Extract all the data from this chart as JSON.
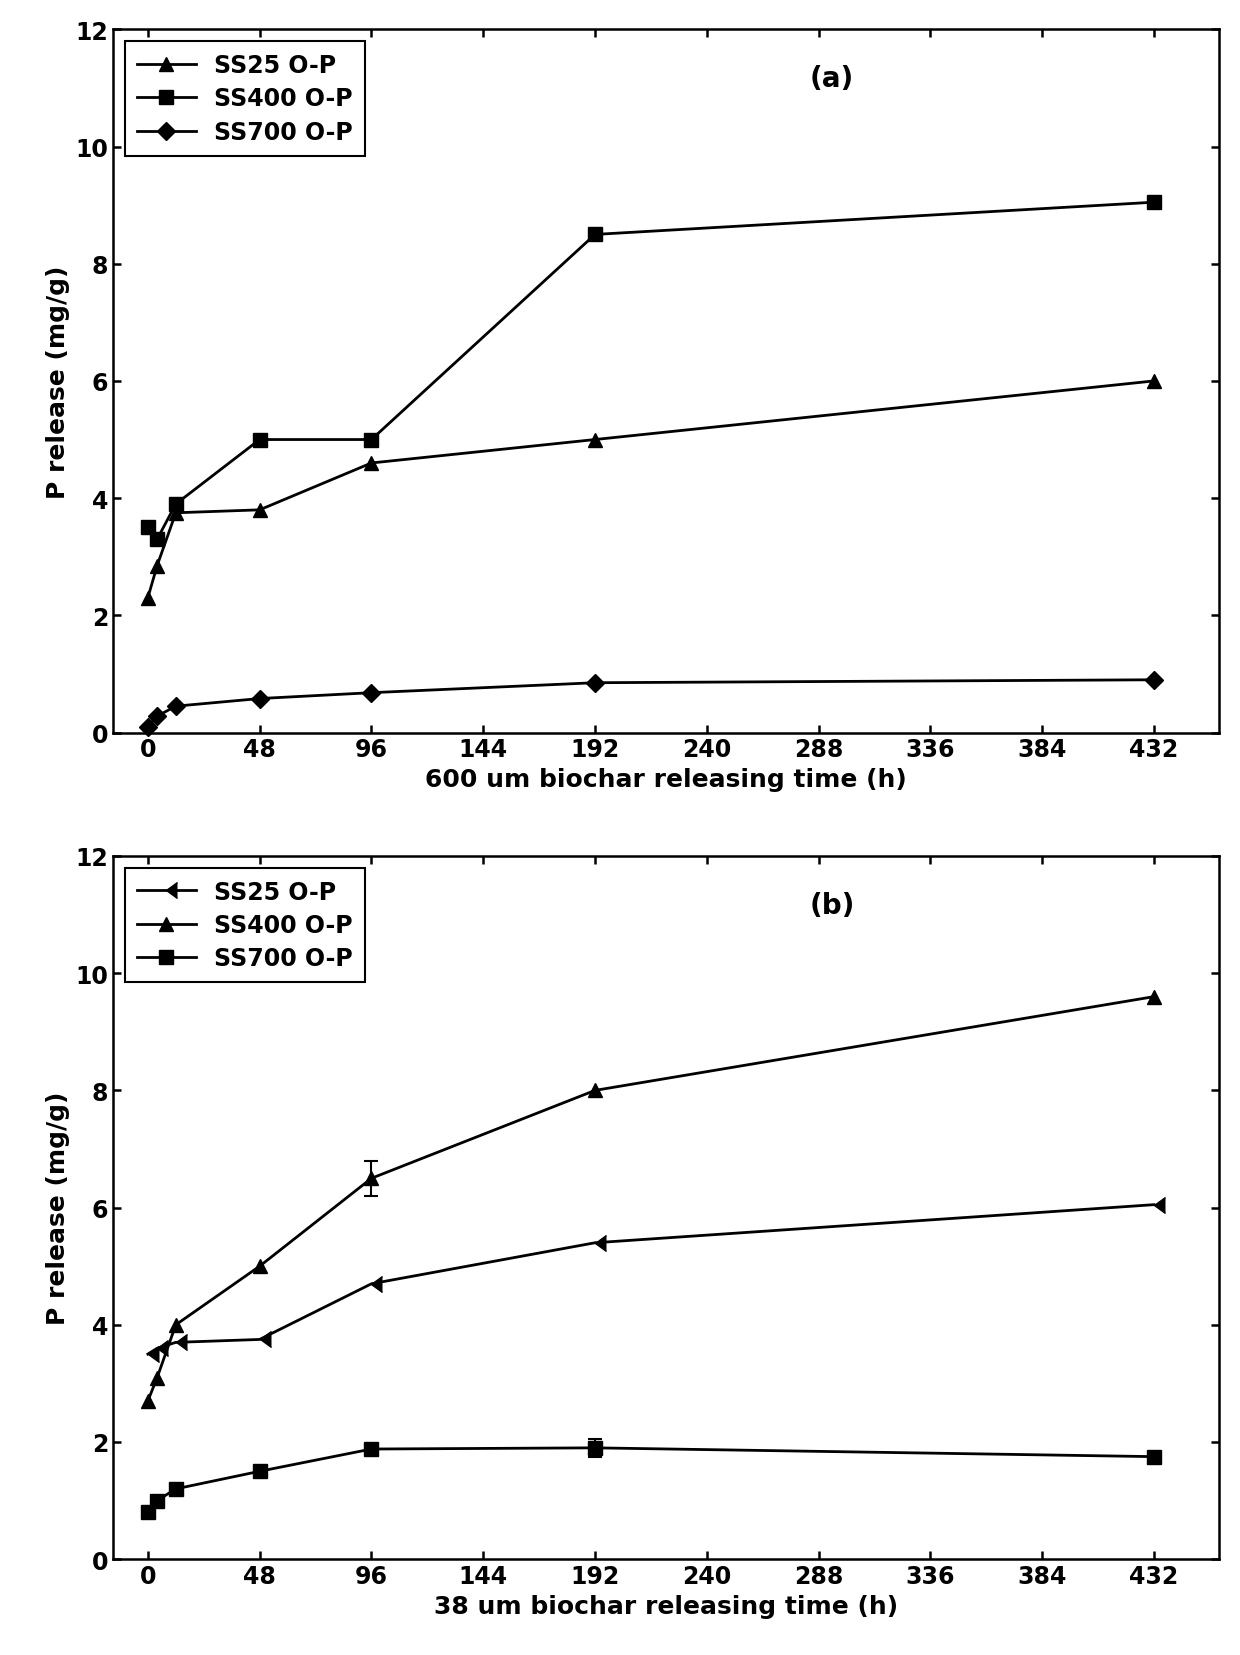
{
  "panel_a": {
    "title": "(a)",
    "xlabel": "600 um biochar releasing time (h)",
    "ylabel": "P release (mg/g)",
    "xlim": [
      -15,
      460
    ],
    "ylim": [
      0,
      12
    ],
    "yticks": [
      0,
      2,
      4,
      6,
      8,
      10,
      12
    ],
    "xticks": [
      0,
      48,
      96,
      144,
      192,
      240,
      288,
      336,
      384,
      432
    ],
    "series": [
      {
        "label": "SS25 O-P",
        "x": [
          0,
          4,
          12,
          48,
          96,
          192,
          432
        ],
        "y": [
          2.3,
          2.85,
          3.75,
          3.8,
          4.6,
          5.0,
          6.0
        ],
        "marker": "^",
        "markersize": 10,
        "linewidth": 2.0,
        "yerr": [
          0,
          0,
          0,
          0,
          0,
          0,
          0
        ]
      },
      {
        "label": "SS400 O-P",
        "x": [
          0,
          4,
          12,
          48,
          96,
          192,
          432
        ],
        "y": [
          3.5,
          3.3,
          3.9,
          5.0,
          5.0,
          8.5,
          9.05
        ],
        "marker": "s",
        "markersize": 10,
        "linewidth": 2.0,
        "yerr": [
          0,
          0,
          0,
          0,
          0,
          0,
          0
        ]
      },
      {
        "label": "SS700 O-P",
        "x": [
          0,
          4,
          12,
          48,
          96,
          192,
          432
        ],
        "y": [
          0.1,
          0.28,
          0.45,
          0.58,
          0.68,
          0.85,
          0.9
        ],
        "marker": "D",
        "markersize": 9,
        "linewidth": 2.0,
        "yerr": [
          0,
          0,
          0,
          0,
          0,
          0,
          0
        ]
      }
    ]
  },
  "panel_b": {
    "title": "(b)",
    "xlabel": "38 um biochar releasing time (h)",
    "ylabel": "P release (mg/g)",
    "xlim": [
      -15,
      460
    ],
    "ylim": [
      0,
      12
    ],
    "yticks": [
      0,
      2,
      4,
      6,
      8,
      10,
      12
    ],
    "xticks": [
      0,
      48,
      96,
      144,
      192,
      240,
      288,
      336,
      384,
      432
    ],
    "series": [
      {
        "label": "SS25 O-P",
        "x": [
          0,
          4,
          12,
          48,
          96,
          192,
          432
        ],
        "y": [
          3.5,
          3.6,
          3.7,
          3.75,
          4.7,
          5.4,
          6.05
        ],
        "marker": 4,
        "markersize": 11,
        "linewidth": 2.0,
        "yerr": [
          0,
          0,
          0,
          0,
          0,
          0,
          0
        ]
      },
      {
        "label": "SS400 O-P",
        "x": [
          0,
          4,
          12,
          48,
          96,
          192,
          432
        ],
        "y": [
          2.7,
          3.1,
          4.0,
          5.0,
          6.5,
          8.0,
          9.6
        ],
        "marker": "^",
        "markersize": 10,
        "linewidth": 2.0,
        "yerr": [
          0,
          0,
          0,
          0,
          0.3,
          0,
          0
        ]
      },
      {
        "label": "SS700 O-P",
        "x": [
          0,
          4,
          12,
          48,
          96,
          192,
          432
        ],
        "y": [
          0.8,
          1.0,
          1.2,
          1.5,
          1.88,
          1.9,
          1.75
        ],
        "marker": "s",
        "markersize": 10,
        "linewidth": 2.0,
        "yerr": [
          0,
          0,
          0,
          0,
          0,
          0.15,
          0
        ]
      }
    ]
  },
  "line_color": "#000000",
  "background_color": "#ffffff",
  "font_size": 18,
  "label_font_size": 18,
  "tick_font_size": 17,
  "legend_font_size": 17,
  "title_font_size": 20
}
